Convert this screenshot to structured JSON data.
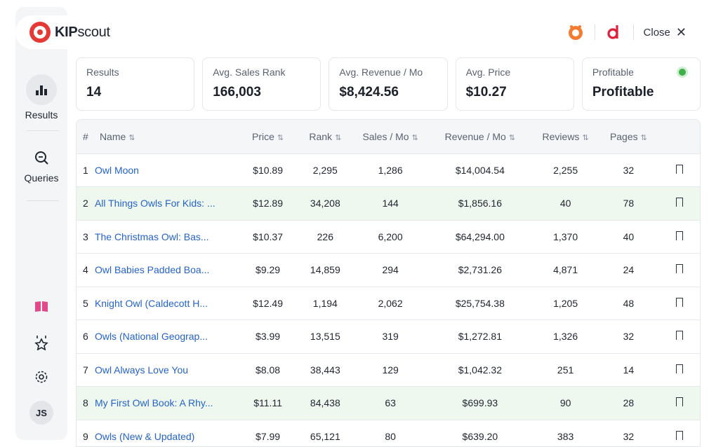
{
  "brand": {
    "name_bold": "KIP",
    "name_light": "scout"
  },
  "nav": {
    "results_label": "Results",
    "queries_label": "Queries"
  },
  "user": {
    "initials": "JS"
  },
  "header": {
    "close_label": "Close"
  },
  "stats": [
    {
      "label": "Results",
      "value": "14"
    },
    {
      "label": "Avg. Sales Rank",
      "value": "166,003"
    },
    {
      "label": "Avg. Revenue / Mo",
      "value": "$8,424.56"
    },
    {
      "label": "Avg. Price",
      "value": "$10.27"
    },
    {
      "label": "Profitable",
      "value": "Profitable",
      "status_color": "#3db04a"
    }
  ],
  "table": {
    "headers": [
      "#",
      "Name",
      "Price",
      "Rank",
      "Sales / Mo",
      "Revenue / Mo",
      "Reviews",
      "Pages"
    ],
    "rows": [
      {
        "n": "1",
        "name": "Owl Moon",
        "price": "$10.89",
        "rank": "2,295",
        "sales": "1,286",
        "revenue": "$14,004.54",
        "reviews": "2,255",
        "pages": "32",
        "highlight": false
      },
      {
        "n": "2",
        "name": "All Things Owls For Kids: ...",
        "price": "$12.89",
        "rank": "34,208",
        "sales": "144",
        "revenue": "$1,856.16",
        "reviews": "40",
        "pages": "78",
        "highlight": true
      },
      {
        "n": "3",
        "name": "The Christmas Owl: Bas...",
        "price": "$10.37",
        "rank": "226",
        "sales": "6,200",
        "revenue": "$64,294.00",
        "reviews": "1,370",
        "pages": "40",
        "highlight": false
      },
      {
        "n": "4",
        "name": "Owl Babies Padded Boa...",
        "price": "$9.29",
        "rank": "14,859",
        "sales": "294",
        "revenue": "$2,731.26",
        "reviews": "4,871",
        "pages": "24",
        "highlight": false
      },
      {
        "n": "5",
        "name": "Knight Owl (Caldecott H...",
        "price": "$12.49",
        "rank": "1,194",
        "sales": "2,062",
        "revenue": "$25,754.38",
        "reviews": "1,205",
        "pages": "48",
        "highlight": false
      },
      {
        "n": "6",
        "name": "Owls (National Geograp...",
        "price": "$3.99",
        "rank": "13,515",
        "sales": "319",
        "revenue": "$1,272.81",
        "reviews": "1,326",
        "pages": "32",
        "highlight": false
      },
      {
        "n": "7",
        "name": "Owl Always Love You",
        "price": "$8.08",
        "rank": "38,443",
        "sales": "129",
        "revenue": "$1,042.32",
        "reviews": "251",
        "pages": "14",
        "highlight": false
      },
      {
        "n": "8",
        "name": "My First Owl Book: A Rhy...",
        "price": "$11.11",
        "rank": "84,438",
        "sales": "63",
        "revenue": "$699.93",
        "reviews": "90",
        "pages": "28",
        "highlight": true
      },
      {
        "n": "9",
        "name": "Owls (New & Updated)",
        "price": "$7.99",
        "rank": "65,121",
        "sales": "80",
        "revenue": "$639.20",
        "reviews": "383",
        "pages": "32",
        "highlight": false
      }
    ]
  }
}
